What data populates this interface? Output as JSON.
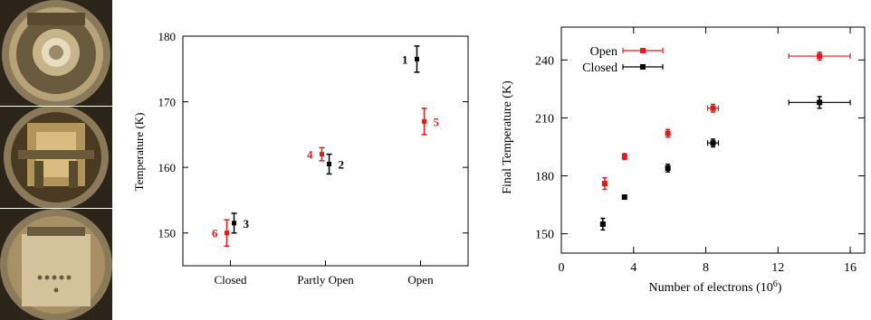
{
  "chart_data": [
    {
      "type": "scatter",
      "ylabel": "Temperature (K)",
      "xlabel": "",
      "categories": [
        "Closed",
        "Partly Open",
        "Open"
      ],
      "ylim": [
        145,
        180
      ],
      "yticks": [
        150,
        160,
        170,
        180
      ],
      "grid": false,
      "colors": {
        "black": "#000000",
        "red": "#e31a1c"
      },
      "points": [
        {
          "label": "1",
          "category": "Open",
          "offset": -0.04,
          "y": 176.5,
          "err": 2.0,
          "color": "black"
        },
        {
          "label": "2",
          "category": "Partly Open",
          "offset": 0.04,
          "y": 160.5,
          "err": 1.5,
          "color": "black"
        },
        {
          "label": "3",
          "category": "Closed",
          "offset": 0.04,
          "y": 151.5,
          "err": 1.5,
          "color": "black"
        },
        {
          "label": "4",
          "category": "Partly Open",
          "offset": -0.04,
          "y": 162.0,
          "err": 1.0,
          "color": "red"
        },
        {
          "label": "5",
          "category": "Open",
          "offset": 0.04,
          "y": 167.0,
          "err": 2.0,
          "color": "red"
        },
        {
          "label": "6",
          "category": "Closed",
          "offset": -0.04,
          "y": 150.0,
          "err": 2.0,
          "color": "red"
        }
      ]
    },
    {
      "type": "scatter",
      "xlabel": "Number of electrons (10^6)",
      "ylabel": "Final Temperature (K)",
      "xlim": [
        0,
        16.8
      ],
      "ylim": [
        140,
        257
      ],
      "xticks": [
        0,
        4,
        8,
        12,
        16
      ],
      "yticks": [
        150,
        180,
        210,
        240
      ],
      "legend_position": "top-left",
      "grid": false,
      "series": [
        {
          "name": "Open",
          "color": "#e31a1c",
          "points": [
            {
              "x": 2.4,
              "y": 176,
              "xerr": 0.1,
              "yerr": 3
            },
            {
              "x": 3.5,
              "y": 190,
              "xerr": 0.1,
              "yerr": 1.5
            },
            {
              "x": 5.9,
              "y": 202,
              "xerr": 0.1,
              "yerr": 2
            },
            {
              "x": 8.4,
              "y": 215,
              "xerr": 0.3,
              "yerr": 2
            },
            {
              "x": 14.3,
              "y": 242,
              "xerr": 1.7,
              "yerr": 2
            }
          ]
        },
        {
          "name": "Closed",
          "color": "#000000",
          "points": [
            {
              "x": 2.3,
              "y": 155,
              "xerr": 0.1,
              "yerr": 3
            },
            {
              "x": 3.5,
              "y": 169,
              "xerr": 0.1,
              "yerr": 1
            },
            {
              "x": 5.9,
              "y": 184,
              "xerr": 0.1,
              "yerr": 2
            },
            {
              "x": 8.4,
              "y": 197,
              "xerr": 0.3,
              "yerr": 2
            },
            {
              "x": 14.3,
              "y": 218,
              "xerr": 1.7,
              "yerr": 3
            }
          ]
        }
      ]
    }
  ]
}
